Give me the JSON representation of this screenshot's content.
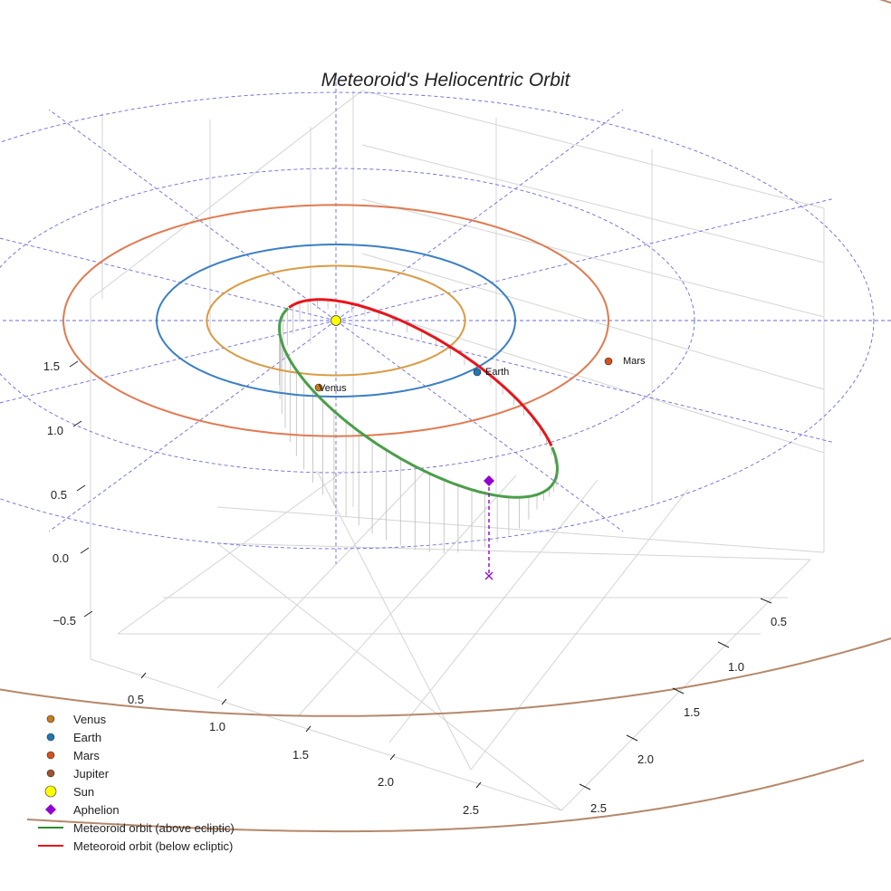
{
  "chart_data": {
    "type": "line",
    "title": "Meteoroid's Heliocentric Orbit",
    "x_ticks": [
      "0.5",
      "1.0",
      "1.5",
      "2.0",
      "2.5"
    ],
    "y_ticks": [
      "0.5",
      "1.0",
      "1.5",
      "2.0",
      "2.5"
    ],
    "z_ticks": [
      "−0.5",
      "0.0",
      "0.5",
      "1.0",
      "1.5"
    ],
    "planets": [
      {
        "name": "Venus",
        "orbit_radius_au": 0.72,
        "label": "Venus",
        "color": "#d99b44",
        "marker_color": "#c77a1c"
      },
      {
        "name": "Earth",
        "orbit_radius_au": 1.0,
        "label": "Earth",
        "color": "#3b7fc4",
        "marker_color": "#1f77b4"
      },
      {
        "name": "Mars",
        "orbit_radius_au": 1.52,
        "label": "Mars",
        "color": "#e07a52",
        "marker_color": "#d2531f"
      },
      {
        "name": "Jupiter",
        "orbit_radius_au": 5.2,
        "label": "",
        "color": "#b5886a",
        "marker_color": "#a0522d"
      }
    ],
    "sun": {
      "name": "Sun",
      "color": "#ffff00"
    },
    "aphelion": {
      "name": "Aphelion",
      "color": "#9400d3"
    },
    "meteoroid_orbit": {
      "above_label": "Meteoroid orbit (above ecliptic)",
      "below_label": "Meteoroid orbit (below ecliptic)",
      "above_color": "#4a9e48",
      "below_color": "#e8141a"
    },
    "legend": [
      {
        "label": "Venus",
        "kind": "dot",
        "color": "#c77a1c"
      },
      {
        "label": "Earth",
        "kind": "dot",
        "color": "#1f77b4"
      },
      {
        "label": "Mars",
        "kind": "dot",
        "color": "#d2531f"
      },
      {
        "label": "Jupiter",
        "kind": "dot",
        "color": "#a0522d"
      },
      {
        "label": "Sun",
        "kind": "sun",
        "color": "#ffff00"
      },
      {
        "label": "Aphelion",
        "kind": "diamond",
        "color": "#9400d3"
      },
      {
        "label": "Meteoroid orbit (above ecliptic)",
        "kind": "line",
        "color": "#2e8b2e"
      },
      {
        "label": "Meteoroid orbit (below ecliptic)",
        "kind": "line",
        "color": "#e8141a"
      }
    ],
    "reference_grid_color": "#6b6bdb"
  }
}
